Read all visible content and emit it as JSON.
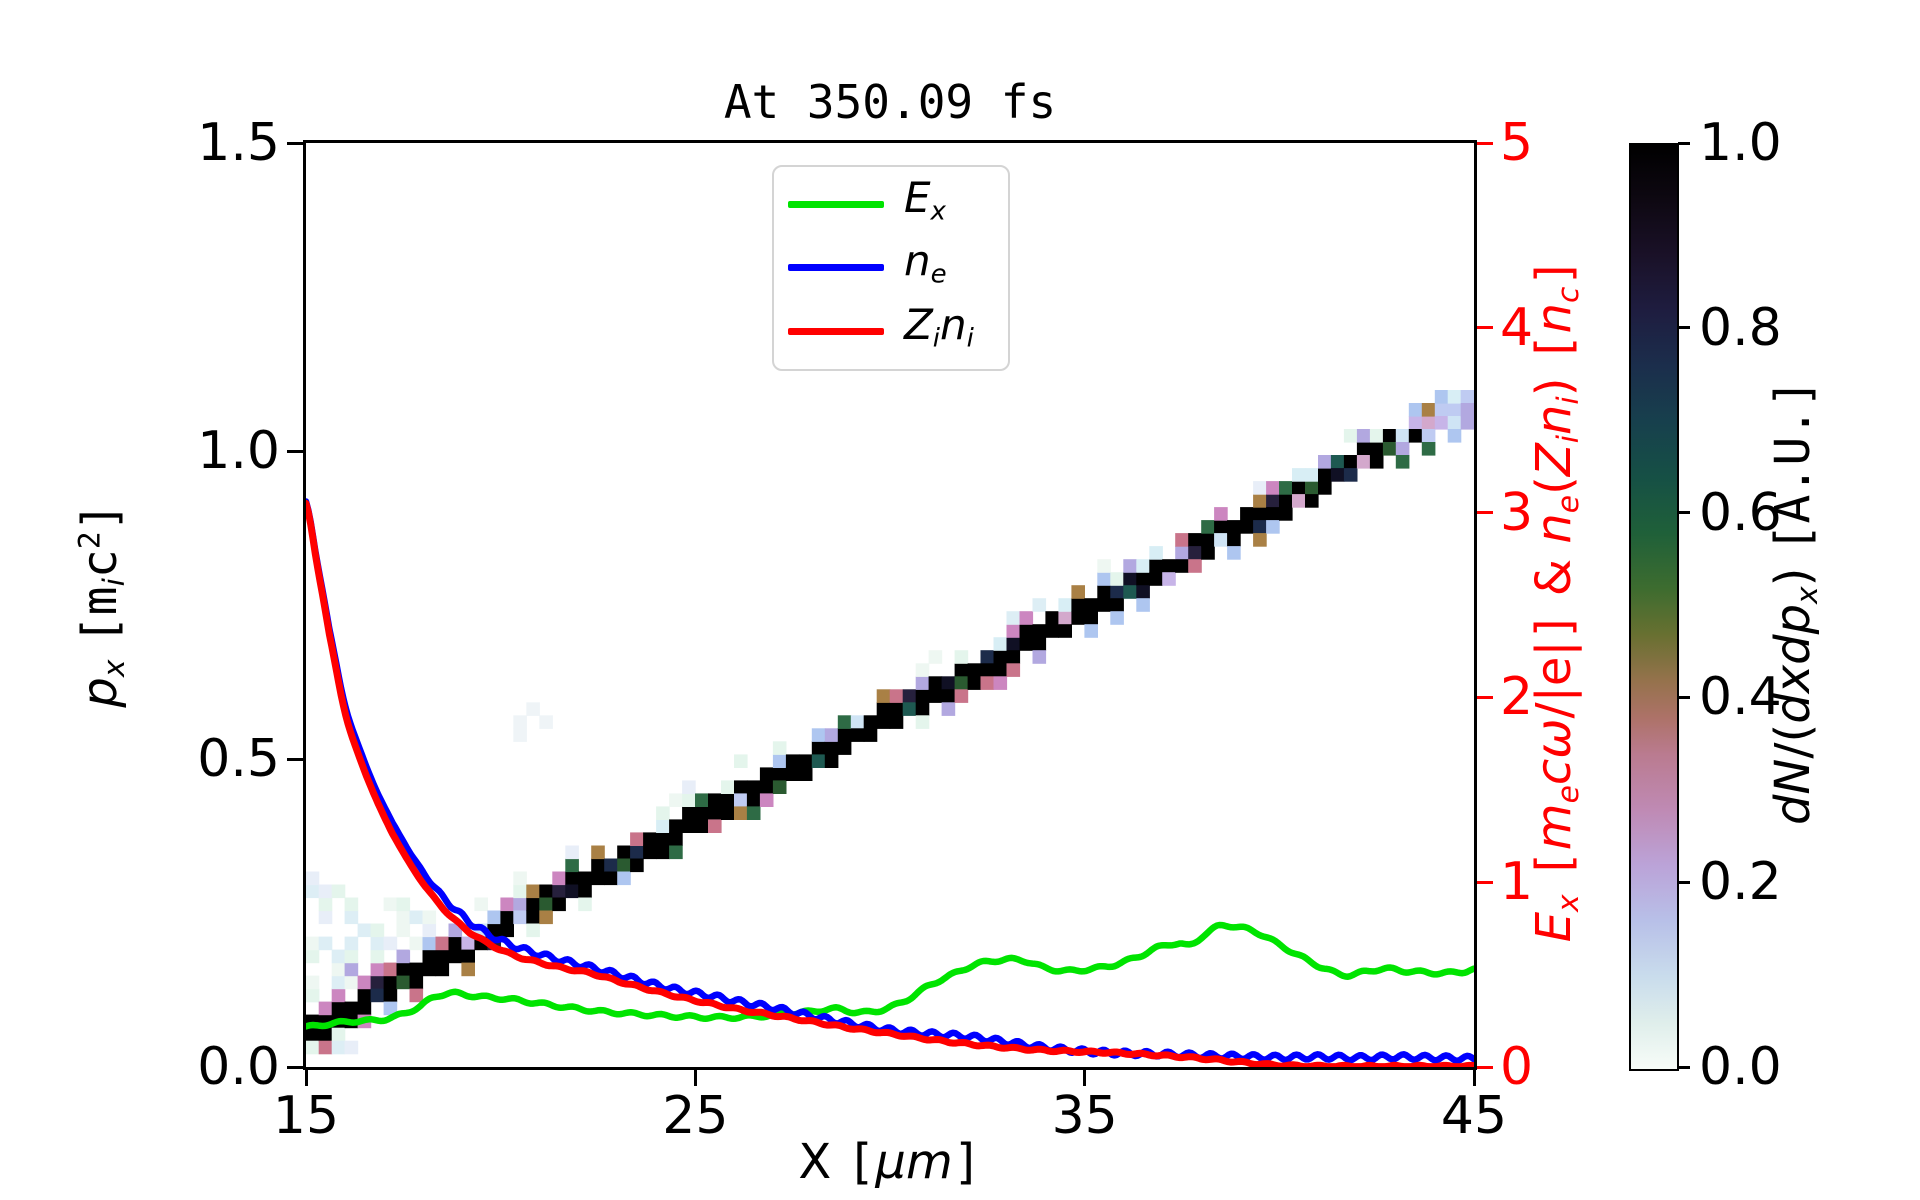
{
  "figure": {
    "title": "At 350.09 fs",
    "background": "#ffffff"
  },
  "colors": {
    "ex_green": "#00e400",
    "ne_blue": "#0000ff",
    "zini_red": "#ff0000",
    "axis_black": "#000000",
    "right_axis_red": "#ff0000"
  },
  "legend": {
    "items": [
      {
        "key": "Ex",
        "color": "#00e400",
        "segments": [
          {
            "t": "E",
            "i": 1
          },
          {
            "t": "x",
            "i": 1,
            "sub": 1
          }
        ]
      },
      {
        "key": "ne",
        "color": "#0000ff",
        "segments": [
          {
            "t": "n",
            "i": 1
          },
          {
            "t": "e",
            "i": 1,
            "sub": 1
          }
        ]
      },
      {
        "key": "Zini",
        "color": "#ff0000",
        "segments": [
          {
            "t": "Z",
            "i": 1
          },
          {
            "t": "i",
            "i": 1,
            "sub": 1
          },
          {
            "t": "n",
            "i": 1
          },
          {
            "t": "i",
            "i": 1,
            "sub": 1
          }
        ]
      }
    ]
  },
  "labels": {
    "x_axis": [
      {
        "t": "X "
      },
      {
        "t": "[",
        "mono": 1
      },
      {
        "t": "μ",
        "i": 1
      },
      {
        "t": "m",
        "i": 1
      },
      {
        "t": "]",
        "mono": 1
      }
    ],
    "y_left": [
      {
        "t": "p",
        "i": 1
      },
      {
        "t": "x",
        "i": 1,
        "sub": 1
      },
      {
        "t": " "
      },
      {
        "t": "[",
        "mono": 1
      },
      {
        "t": "m",
        "mono": 1
      },
      {
        "t": "i",
        "i": 1,
        "sub": 1
      },
      {
        "t": "c",
        "mono": 1
      },
      {
        "t": "2",
        "mono": 1,
        "sup": 1
      },
      {
        "t": "]",
        "mono": 1
      }
    ],
    "y_right": [
      {
        "t": "E",
        "i": 1
      },
      {
        "t": "x",
        "i": 1,
        "sub": 1
      },
      {
        "t": " "
      },
      {
        "t": "[",
        "mono": 1
      },
      {
        "t": "m",
        "i": 1
      },
      {
        "t": "e",
        "i": 1,
        "sub": 1
      },
      {
        "t": "c",
        "i": 1
      },
      {
        "t": "ω",
        "i": 1
      },
      {
        "t": "/|e|"
      },
      {
        "t": "]",
        "mono": 1
      },
      {
        "t": " & "
      },
      {
        "t": "n",
        "i": 1
      },
      {
        "t": "e",
        "i": 1,
        "sub": 1
      },
      {
        "t": "("
      },
      {
        "t": "Z",
        "i": 1
      },
      {
        "t": "i",
        "i": 1,
        "sub": 1
      },
      {
        "t": "n",
        "i": 1
      },
      {
        "t": "i",
        "i": 1,
        "sub": 1
      },
      {
        "t": ")"
      },
      {
        "t": " "
      },
      {
        "t": "[",
        "mono": 1
      },
      {
        "t": "n",
        "i": 1
      },
      {
        "t": "c",
        "i": 1,
        "sub": 1
      },
      {
        "t": "]",
        "mono": 1
      }
    ],
    "colorbar": [
      {
        "t": "d",
        "i": 1
      },
      {
        "t": "N",
        "i": 1
      },
      {
        "t": "/("
      },
      {
        "t": "d",
        "i": 1
      },
      {
        "t": "x",
        "i": 1
      },
      {
        "t": "d",
        "i": 1
      },
      {
        "t": "p",
        "i": 1
      },
      {
        "t": "x",
        "i": 1,
        "sub": 1
      },
      {
        "t": ") "
      },
      {
        "t": "[A.U.]",
        "mono": 1
      }
    ]
  },
  "chart_data": {
    "type": [
      "heatmap",
      "line"
    ],
    "title": "At 350.09 fs",
    "x_axis": {
      "label": "X [um]",
      "range": [
        15,
        45
      ],
      "ticks": [
        {
          "v": 15,
          "label": "15"
        },
        {
          "v": 25,
          "label": "25"
        },
        {
          "v": 35,
          "label": "35"
        },
        {
          "v": 45,
          "label": "45"
        }
      ]
    },
    "y_left": {
      "label": "p_x [m_i c^2]",
      "range": [
        0,
        1.5
      ],
      "ticks": [
        {
          "v": 1.5,
          "label": "1.5"
        },
        {
          "v": 1.0,
          "label": "1.0"
        },
        {
          "v": 0.5,
          "label": "0.5"
        },
        {
          "v": 0.0,
          "label": "0.0"
        }
      ]
    },
    "y_right": {
      "label": "E_x [m_e c w / |e|] & n_e(Z_i n_i) [n_c]",
      "range": [
        0,
        5
      ],
      "color": "#ff0000",
      "ticks": [
        {
          "v": 5,
          "label": "5"
        },
        {
          "v": 4,
          "label": "4"
        },
        {
          "v": 3,
          "label": "3"
        },
        {
          "v": 2,
          "label": "2"
        },
        {
          "v": 1,
          "label": "1"
        },
        {
          "v": 0,
          "label": "0"
        }
      ]
    },
    "series": [
      {
        "name": "Ex",
        "axis": "right",
        "color": "#00e400",
        "linewidth": 6.5,
        "wiggle": {
          "amp": 0.008,
          "period": 0.75,
          "phase": 0.6
        },
        "points": [
          [
            15,
            0.215
          ],
          [
            15.4,
            0.228
          ],
          [
            15.8,
            0.238
          ],
          [
            16.2,
            0.248
          ],
          [
            16.6,
            0.25
          ],
          [
            17,
            0.258
          ],
          [
            17.4,
            0.28
          ],
          [
            17.9,
            0.325
          ],
          [
            18.3,
            0.378
          ],
          [
            18.7,
            0.4
          ],
          [
            19.1,
            0.39
          ],
          [
            19.6,
            0.378
          ],
          [
            20.2,
            0.368
          ],
          [
            20.8,
            0.35
          ],
          [
            21.4,
            0.332
          ],
          [
            22,
            0.315
          ],
          [
            22.6,
            0.3
          ],
          [
            23.2,
            0.29
          ],
          [
            24,
            0.28
          ],
          [
            24.8,
            0.272
          ],
          [
            25.6,
            0.268
          ],
          [
            26.4,
            0.272
          ],
          [
            27.2,
            0.285
          ],
          [
            28,
            0.3
          ],
          [
            28.6,
            0.315
          ],
          [
            29.2,
            0.295
          ],
          [
            29.8,
            0.31
          ],
          [
            30.4,
            0.36
          ],
          [
            31,
            0.44
          ],
          [
            31.6,
            0.5
          ],
          [
            32.2,
            0.555
          ],
          [
            32.8,
            0.578
          ],
          [
            33.4,
            0.578
          ],
          [
            34,
            0.535
          ],
          [
            34.6,
            0.52
          ],
          [
            35.2,
            0.532
          ],
          [
            35.8,
            0.555
          ],
          [
            36.4,
            0.6
          ],
          [
            37,
            0.655
          ],
          [
            37.4,
            0.668
          ],
          [
            37.7,
            0.658
          ],
          [
            38.1,
            0.72
          ],
          [
            38.5,
            0.765
          ],
          [
            38.9,
            0.758
          ],
          [
            39.4,
            0.73
          ],
          [
            40,
            0.662
          ],
          [
            40.6,
            0.592
          ],
          [
            41.2,
            0.53
          ],
          [
            41.7,
            0.497
          ],
          [
            42.2,
            0.515
          ],
          [
            42.7,
            0.532
          ],
          [
            43.2,
            0.52
          ],
          [
            43.7,
            0.513
          ],
          [
            44.2,
            0.508
          ],
          [
            44.7,
            0.515
          ],
          [
            45,
            0.528
          ]
        ]
      },
      {
        "name": "ne",
        "axis": "right",
        "color": "#0000ff",
        "linewidth": 6.5,
        "wiggle": {
          "amp": 0.014,
          "period": 0.55,
          "phase": 0.0
        },
        "points": [
          [
            15,
            3.06
          ],
          [
            15.3,
            2.72
          ],
          [
            15.6,
            2.37
          ],
          [
            16,
            1.96
          ],
          [
            16.4,
            1.71
          ],
          [
            16.8,
            1.5
          ],
          [
            17.2,
            1.33
          ],
          [
            17.7,
            1.15
          ],
          [
            18.2,
            1.0
          ],
          [
            18.7,
            0.88
          ],
          [
            19.2,
            0.785
          ],
          [
            19.8,
            0.705
          ],
          [
            20.4,
            0.65
          ],
          [
            21,
            0.61
          ],
          [
            21.6,
            0.575
          ],
          [
            22.3,
            0.54
          ],
          [
            23,
            0.5
          ],
          [
            23.8,
            0.455
          ],
          [
            24.6,
            0.415
          ],
          [
            25.4,
            0.385
          ],
          [
            26.2,
            0.35
          ],
          [
            27,
            0.32
          ],
          [
            28,
            0.275
          ],
          [
            29,
            0.235
          ],
          [
            30,
            0.2
          ],
          [
            31,
            0.18
          ],
          [
            32,
            0.165
          ],
          [
            33,
            0.135
          ],
          [
            34,
            0.105
          ],
          [
            35,
            0.085
          ],
          [
            36,
            0.075
          ],
          [
            37,
            0.07
          ],
          [
            38,
            0.062
          ],
          [
            39,
            0.057
          ],
          [
            40,
            0.052
          ],
          [
            41,
            0.055
          ],
          [
            42,
            0.05
          ],
          [
            43,
            0.055
          ],
          [
            44,
            0.05
          ],
          [
            45,
            0.046
          ]
        ]
      },
      {
        "name": "Zini",
        "axis": "right",
        "color": "#ff0000",
        "linewidth": 7,
        "wiggle": {
          "amp": 0.005,
          "period": 0.65,
          "phase": 1.5
        },
        "points": [
          [
            15,
            3.05
          ],
          [
            15.3,
            2.7
          ],
          [
            15.6,
            2.34
          ],
          [
            16,
            1.92
          ],
          [
            16.4,
            1.66
          ],
          [
            16.8,
            1.45
          ],
          [
            17.2,
            1.27
          ],
          [
            17.7,
            1.09
          ],
          [
            18.2,
            0.94
          ],
          [
            18.7,
            0.82
          ],
          [
            19.2,
            0.73
          ],
          [
            19.8,
            0.655
          ],
          [
            20.4,
            0.6
          ],
          [
            21,
            0.565
          ],
          [
            21.6,
            0.535
          ],
          [
            22.3,
            0.508
          ],
          [
            23,
            0.465
          ],
          [
            23.8,
            0.42
          ],
          [
            24.6,
            0.378
          ],
          [
            25.4,
            0.342
          ],
          [
            26.2,
            0.308
          ],
          [
            27,
            0.28
          ],
          [
            28,
            0.245
          ],
          [
            29,
            0.21
          ],
          [
            30,
            0.18
          ],
          [
            31,
            0.15
          ],
          [
            32,
            0.125
          ],
          [
            33,
            0.105
          ],
          [
            33.8,
            0.092
          ],
          [
            34.6,
            0.085
          ],
          [
            35.4,
            0.08
          ],
          [
            36.2,
            0.072
          ],
          [
            37,
            0.062
          ],
          [
            37.8,
            0.05
          ],
          [
            38.6,
            0.035
          ],
          [
            39.3,
            0.02
          ],
          [
            40,
            0.01
          ],
          [
            40.6,
            0.006
          ],
          [
            41.5,
            0.004
          ],
          [
            43,
            0.004
          ],
          [
            45,
            0.004
          ]
        ]
      }
    ],
    "heatmap": {
      "name": "dN/(dxdp_x) ion phase space",
      "x_range": [
        15,
        45
      ],
      "p_range": [
        0,
        1.5
      ],
      "cols": 90,
      "rows": 71,
      "seed": 987654321,
      "band": {
        "p0": 0.055,
        "slope": 0.0342,
        "core_cells": 2
      },
      "palette_core_alt": [
        "#101024",
        "#1c2b4a",
        "#1e5951",
        "#2a5a30",
        "#26203c"
      ],
      "palette_noise": [
        "#a98045",
        "#c9748a",
        "#cc86c0",
        "#b2a8e0",
        "#aec6f0",
        "#d8eef5",
        "#e4f5ec",
        "#2e6b45"
      ],
      "palette_pale": [
        "#ddeef5",
        "#e4f5ec",
        "#eef7f2",
        "#e8eef8"
      ],
      "palette_light": [
        "#b2a8e0",
        "#bfcbf2",
        "#d3a8cc",
        "#cfe4f5",
        "#c7b4e8"
      ],
      "smudges": [
        {
          "x": 20.4,
          "p": 0.57
        },
        {
          "x": 20.8,
          "p": 0.578
        },
        {
          "x": 21.1,
          "p": 0.56
        },
        {
          "x": 20.6,
          "p": 0.545
        }
      ],
      "smudge_color": "#eff4f7"
    },
    "colorbar": {
      "label": "dN/(dxdp_x) [A.U.]",
      "range": [
        0,
        1
      ],
      "ticks": [
        {
          "v": 1.0,
          "label": "1.0"
        },
        {
          "v": 0.8,
          "label": "0.8"
        },
        {
          "v": 0.6,
          "label": "0.6"
        },
        {
          "v": 0.4,
          "label": "0.4"
        },
        {
          "v": 0.2,
          "label": "0.2"
        },
        {
          "v": 0.0,
          "label": "0.0"
        }
      ],
      "colormap": "cubehelix (1 = black at top, 0 = white at bottom)",
      "gradient_stops": [
        [
          0,
          "#000000"
        ],
        [
          0.06,
          "#0e0812"
        ],
        [
          0.12,
          "#1a1128"
        ],
        [
          0.18,
          "#1e1d40"
        ],
        [
          0.24,
          "#1b2e4c"
        ],
        [
          0.3,
          "#17404d"
        ],
        [
          0.36,
          "#165045"
        ],
        [
          0.42,
          "#1f6039"
        ],
        [
          0.48,
          "#3d6c2f"
        ],
        [
          0.53,
          "#687031"
        ],
        [
          0.58,
          "#95724c"
        ],
        [
          0.62,
          "#ad7268"
        ],
        [
          0.66,
          "#ba7b90"
        ],
        [
          0.72,
          "#bf8ab4"
        ],
        [
          0.78,
          "#bba3d8"
        ],
        [
          0.84,
          "#b8c0e8"
        ],
        [
          0.9,
          "#c9dcec"
        ],
        [
          0.95,
          "#dfeeeb"
        ],
        [
          1,
          "#f7fcf8"
        ]
      ]
    }
  }
}
